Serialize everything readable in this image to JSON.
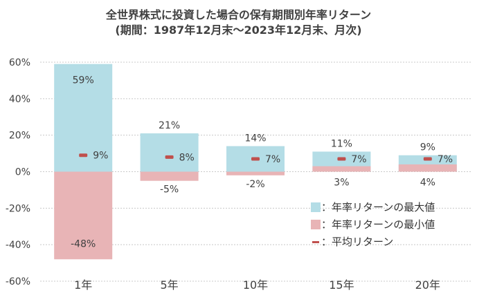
{
  "chart_data": {
    "type": "bar",
    "title": "全世界株式に投資した場合の保有期間別年率リターン",
    "subtitle": "(期間：1987年12月末〜2023年12月末、月次)",
    "categories": [
      "1年",
      "5年",
      "10年",
      "15年",
      "20年"
    ],
    "series": [
      {
        "name": "年率リターンの最大値",
        "values": [
          59,
          21,
          14,
          11,
          9
        ],
        "labels": [
          "59%",
          "21%",
          "14%",
          "11%",
          "9%"
        ],
        "color": "#b4dde6"
      },
      {
        "name": "年率リターンの最小値",
        "values": [
          -48,
          -5,
          -2,
          3,
          4
        ],
        "labels": [
          "-48%",
          "-5%",
          "-2%",
          "3%",
          "4%"
        ],
        "color": "#e8b4b6"
      },
      {
        "name": "平均リターン",
        "values": [
          9,
          8,
          7,
          7,
          7
        ],
        "labels": [
          "9%",
          "8%",
          "7%",
          "7%",
          "7%"
        ],
        "color": "#c0504d"
      }
    ],
    "ylim": [
      -60,
      60
    ],
    "yticks": [
      60,
      40,
      20,
      0,
      -20,
      -40,
      -60
    ],
    "ytick_labels": [
      "60%",
      "40%",
      "20%",
      "0%",
      "-20%",
      "-40%",
      "-60%"
    ],
    "grid": "dotted",
    "legend": [
      {
        "label": "：年率リターンの最大値",
        "color": "#b4dde6",
        "kind": "box"
      },
      {
        "label": "：年率リターンの最小値",
        "color": "#e8b4b6",
        "kind": "box"
      },
      {
        "label": "：平均リターン",
        "color": "#c0504d",
        "kind": "dash"
      }
    ],
    "legend_position": "bottom-right"
  }
}
